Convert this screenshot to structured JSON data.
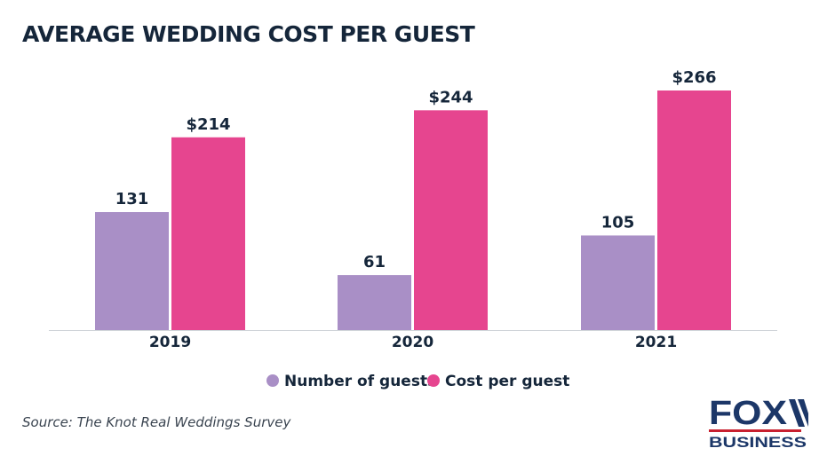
{
  "chart_data": {
    "type": "bar",
    "title": "AVERAGE WEDDING COST PER GUEST",
    "categories": [
      "2019",
      "2020",
      "2021"
    ],
    "series": [
      {
        "name": "Number of guests",
        "values": [
          131,
          61,
          105
        ],
        "labels": [
          "131",
          "61",
          "105"
        ],
        "color": "#a98fc6"
      },
      {
        "name": "Cost per guest",
        "values": [
          214,
          244,
          266
        ],
        "labels": [
          "$214",
          "$244",
          "$266"
        ],
        "color": "#e6458f"
      }
    ],
    "xlabel": "",
    "ylabel": "",
    "ylim": [
      0,
      266
    ],
    "grid": false,
    "legend": "bottom-center"
  },
  "source": "Source: The Knot Real Weddings Survey",
  "logo": {
    "line1": "FOX",
    "line2": "BUSINESS",
    "navy": "#1c3768",
    "red": "#c8202f"
  }
}
